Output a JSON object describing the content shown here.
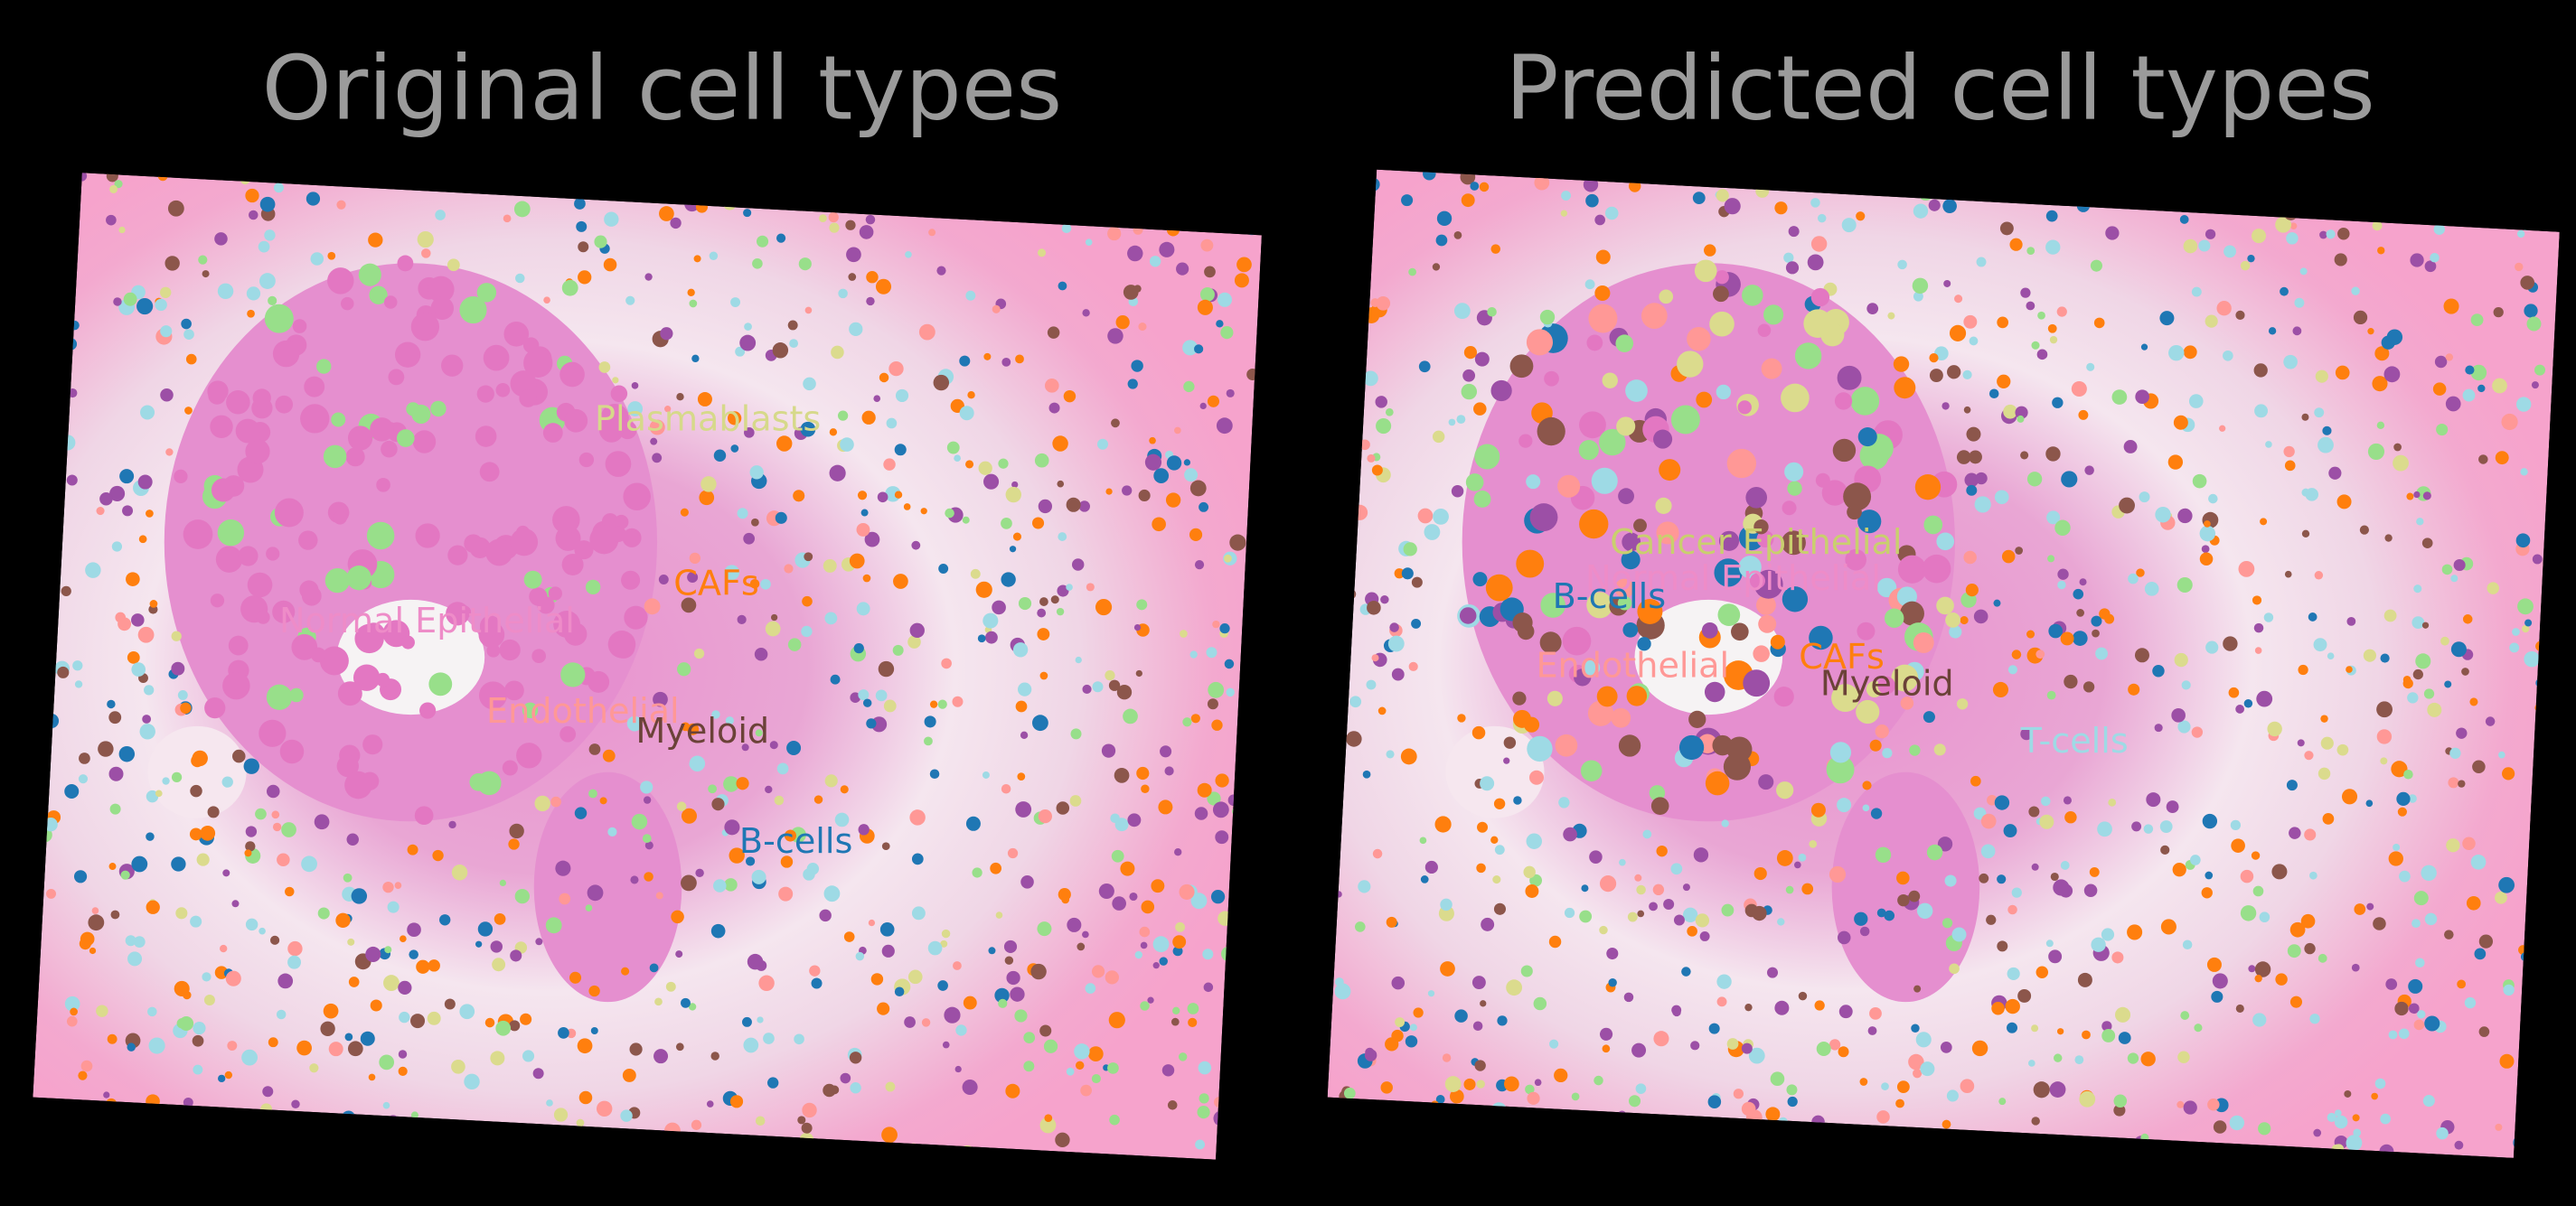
{
  "panels": [
    {
      "title": "Original cell types",
      "labels": [
        "Plasmablasts",
        "CAFs",
        "Normal Epithelial",
        "Endothelial",
        "Myeloid",
        "B-cells"
      ]
    },
    {
      "title": "Predicted cell types",
      "labels": [
        "Cancer Epithelial",
        "Normal Epithelial",
        "B-cells",
        "Endothelial",
        "CAFs",
        "Myeloid",
        "T-cells"
      ]
    }
  ]
}
